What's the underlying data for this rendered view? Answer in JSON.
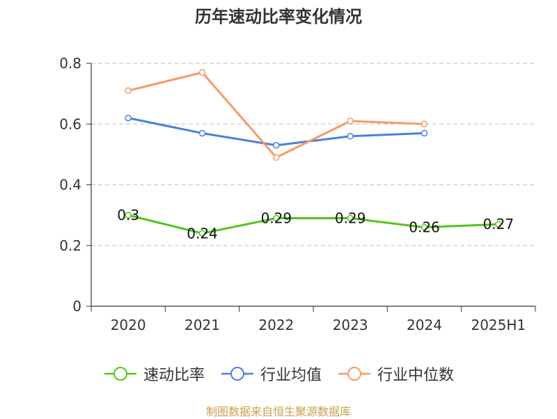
{
  "title": "历年速动比率变化情况",
  "source_note": "制图数据来自恒生聚源数据库",
  "chart_data": {
    "type": "line",
    "title": "历年速动比率变化情况",
    "categories": [
      "2020",
      "2021",
      "2022",
      "2023",
      "2024",
      "2025H1"
    ],
    "ylim": [
      0,
      0.8
    ],
    "yticks": [
      0,
      0.2,
      0.4,
      0.6,
      0.8
    ],
    "ytick_labels": [
      "0",
      "0.2",
      "0.4",
      "0.6",
      "0.8"
    ],
    "grid": true,
    "legend_position": "bottom",
    "series": [
      {
        "name": "速动比率",
        "color": "#52c41a",
        "values": [
          0.3,
          0.24,
          0.29,
          0.29,
          0.26,
          0.27
        ],
        "data_labels": [
          "0.3",
          "0.24",
          "0.29",
          "0.29",
          "0.26",
          "0.27"
        ]
      },
      {
        "name": "行业均值",
        "color": "#4a7fe0",
        "values": [
          0.62,
          0.57,
          0.53,
          0.56,
          0.57,
          null
        ]
      },
      {
        "name": "行业中位数",
        "color": "#f79a66",
        "values": [
          0.71,
          0.77,
          0.49,
          0.61,
          0.6,
          null
        ]
      }
    ]
  }
}
